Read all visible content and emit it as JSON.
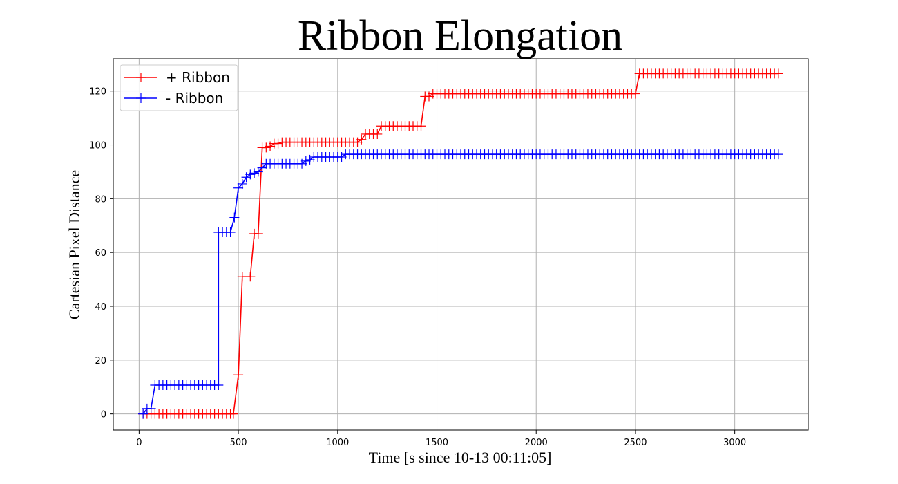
{
  "chart_data": {
    "type": "line",
    "title": "Ribbon Elongation",
    "xlabel": "Time [s since 10-13 00:11:05]",
    "ylabel": "Cartesian Pixel Distance",
    "xlim": [
      -130,
      3370
    ],
    "ylim": [
      -6,
      132
    ],
    "xticks": [
      0,
      500,
      1000,
      1500,
      2000,
      2500,
      3000
    ],
    "yticks": [
      0,
      20,
      40,
      60,
      80,
      100,
      120
    ],
    "grid": true,
    "legend_position": "top-left",
    "marker": "+",
    "series": [
      {
        "name": "+ Ribbon",
        "color": "#ff0000",
        "points": [
          [
            20,
            0
          ],
          [
            40,
            0
          ],
          [
            60,
            0
          ],
          [
            80,
            0
          ],
          [
            100,
            0
          ],
          [
            120,
            0
          ],
          [
            140,
            0
          ],
          [
            160,
            0
          ],
          [
            180,
            0
          ],
          [
            200,
            0
          ],
          [
            220,
            0
          ],
          [
            240,
            0
          ],
          [
            260,
            0
          ],
          [
            280,
            0
          ],
          [
            300,
            0
          ],
          [
            320,
            0
          ],
          [
            340,
            0
          ],
          [
            360,
            0
          ],
          [
            380,
            0
          ],
          [
            400,
            0
          ],
          [
            420,
            0
          ],
          [
            440,
            0
          ],
          [
            460,
            0
          ],
          [
            475,
            0
          ],
          [
            500,
            14.5
          ],
          [
            520,
            51
          ],
          [
            560,
            51
          ],
          [
            580,
            67
          ],
          [
            600,
            67
          ],
          [
            620,
            99
          ],
          [
            640,
            99
          ],
          [
            660,
            99.5
          ],
          [
            680,
            100.5
          ],
          [
            700,
            100.5
          ],
          [
            720,
            101
          ],
          [
            740,
            101
          ],
          [
            760,
            101
          ],
          [
            780,
            101
          ],
          [
            800,
            101
          ],
          [
            820,
            101
          ],
          [
            840,
            101
          ],
          [
            860,
            101
          ],
          [
            880,
            101
          ],
          [
            900,
            101
          ],
          [
            920,
            101
          ],
          [
            940,
            101
          ],
          [
            960,
            101
          ],
          [
            980,
            101
          ],
          [
            1000,
            101
          ],
          [
            1020,
            101
          ],
          [
            1040,
            101
          ],
          [
            1060,
            101
          ],
          [
            1080,
            101
          ],
          [
            1100,
            101
          ],
          [
            1120,
            102
          ],
          [
            1140,
            104
          ],
          [
            1160,
            104
          ],
          [
            1180,
            104
          ],
          [
            1200,
            104
          ],
          [
            1220,
            107
          ],
          [
            1240,
            107
          ],
          [
            1260,
            107
          ],
          [
            1280,
            107
          ],
          [
            1300,
            107
          ],
          [
            1320,
            107
          ],
          [
            1340,
            107
          ],
          [
            1360,
            107
          ],
          [
            1380,
            107
          ],
          [
            1400,
            107
          ],
          [
            1420,
            107
          ],
          [
            1440,
            118
          ],
          [
            1460,
            118
          ],
          [
            1480,
            119
          ],
          [
            1500,
            119
          ],
          [
            1520,
            119
          ],
          [
            1540,
            119
          ],
          [
            1560,
            119
          ],
          [
            1580,
            119
          ],
          [
            1600,
            119
          ],
          [
            1620,
            119
          ],
          [
            1640,
            119
          ],
          [
            1660,
            119
          ],
          [
            1680,
            119
          ],
          [
            1700,
            119
          ],
          [
            1720,
            119
          ],
          [
            1740,
            119
          ],
          [
            1760,
            119
          ],
          [
            1780,
            119
          ],
          [
            1800,
            119
          ],
          [
            1820,
            119
          ],
          [
            1840,
            119
          ],
          [
            1860,
            119
          ],
          [
            1880,
            119
          ],
          [
            1900,
            119
          ],
          [
            1920,
            119
          ],
          [
            1940,
            119
          ],
          [
            1960,
            119
          ],
          [
            1980,
            119
          ],
          [
            2000,
            119
          ],
          [
            2020,
            119
          ],
          [
            2040,
            119
          ],
          [
            2060,
            119
          ],
          [
            2080,
            119
          ],
          [
            2100,
            119
          ],
          [
            2120,
            119
          ],
          [
            2140,
            119
          ],
          [
            2160,
            119
          ],
          [
            2180,
            119
          ],
          [
            2200,
            119
          ],
          [
            2220,
            119
          ],
          [
            2240,
            119
          ],
          [
            2260,
            119
          ],
          [
            2280,
            119
          ],
          [
            2300,
            119
          ],
          [
            2320,
            119
          ],
          [
            2340,
            119
          ],
          [
            2360,
            119
          ],
          [
            2380,
            119
          ],
          [
            2400,
            119
          ],
          [
            2420,
            119
          ],
          [
            2440,
            119
          ],
          [
            2460,
            119
          ],
          [
            2480,
            119
          ],
          [
            2500,
            119
          ],
          [
            2520,
            126.5
          ],
          [
            2540,
            126.5
          ],
          [
            2560,
            126.5
          ],
          [
            2580,
            126.5
          ],
          [
            2600,
            126.5
          ],
          [
            2620,
            126.5
          ],
          [
            2640,
            126.5
          ],
          [
            2660,
            126.5
          ],
          [
            2680,
            126.5
          ],
          [
            2700,
            126.5
          ],
          [
            2720,
            126.5
          ],
          [
            2740,
            126.5
          ],
          [
            2760,
            126.5
          ],
          [
            2780,
            126.5
          ],
          [
            2800,
            126.5
          ],
          [
            2820,
            126.5
          ],
          [
            2840,
            126.5
          ],
          [
            2860,
            126.5
          ],
          [
            2880,
            126.5
          ],
          [
            2900,
            126.5
          ],
          [
            2920,
            126.5
          ],
          [
            2940,
            126.5
          ],
          [
            2960,
            126.5
          ],
          [
            2980,
            126.5
          ],
          [
            3000,
            126.5
          ],
          [
            3020,
            126.5
          ],
          [
            3040,
            126.5
          ],
          [
            3060,
            126.5
          ],
          [
            3080,
            126.5
          ],
          [
            3100,
            126.5
          ],
          [
            3120,
            126.5
          ],
          [
            3140,
            126.5
          ],
          [
            3160,
            126.5
          ],
          [
            3180,
            126.5
          ],
          [
            3200,
            126.5
          ],
          [
            3220,
            126.5
          ]
        ]
      },
      {
        "name": "- Ribbon",
        "color": "#0000ff",
        "points": [
          [
            20,
            0
          ],
          [
            40,
            2
          ],
          [
            60,
            2
          ],
          [
            80,
            10.7
          ],
          [
            100,
            10.7
          ],
          [
            120,
            10.7
          ],
          [
            140,
            10.7
          ],
          [
            160,
            10.7
          ],
          [
            180,
            10.7
          ],
          [
            200,
            10.7
          ],
          [
            220,
            10.7
          ],
          [
            240,
            10.7
          ],
          [
            260,
            10.7
          ],
          [
            280,
            10.7
          ],
          [
            300,
            10.7
          ],
          [
            320,
            10.7
          ],
          [
            340,
            10.7
          ],
          [
            360,
            10.7
          ],
          [
            380,
            10.7
          ],
          [
            400,
            10.7
          ],
          [
            400,
            67.5
          ],
          [
            420,
            67.5
          ],
          [
            440,
            67.5
          ],
          [
            460,
            67.5
          ],
          [
            480,
            73
          ],
          [
            500,
            84
          ],
          [
            520,
            85.5
          ],
          [
            540,
            88
          ],
          [
            560,
            89
          ],
          [
            580,
            89.5
          ],
          [
            600,
            90
          ],
          [
            620,
            91.5
          ],
          [
            640,
            93
          ],
          [
            660,
            93
          ],
          [
            680,
            93
          ],
          [
            700,
            93
          ],
          [
            720,
            93
          ],
          [
            740,
            93
          ],
          [
            760,
            93
          ],
          [
            780,
            93
          ],
          [
            800,
            93
          ],
          [
            820,
            93
          ],
          [
            840,
            94
          ],
          [
            860,
            94.5
          ],
          [
            880,
            95.5
          ],
          [
            900,
            95.5
          ],
          [
            920,
            95.5
          ],
          [
            940,
            95.5
          ],
          [
            960,
            95.5
          ],
          [
            980,
            95.5
          ],
          [
            1000,
            95.5
          ],
          [
            1020,
            95.5
          ],
          [
            1040,
            96.5
          ],
          [
            1060,
            96.5
          ],
          [
            1080,
            96.5
          ],
          [
            1100,
            96.5
          ],
          [
            1120,
            96.5
          ],
          [
            1140,
            96.5
          ],
          [
            1160,
            96.5
          ],
          [
            1180,
            96.5
          ],
          [
            1200,
            96.5
          ],
          [
            1220,
            96.5
          ],
          [
            1240,
            96.5
          ],
          [
            1260,
            96.5
          ],
          [
            1280,
            96.5
          ],
          [
            1300,
            96.5
          ],
          [
            1320,
            96.5
          ],
          [
            1340,
            96.5
          ],
          [
            1360,
            96.5
          ],
          [
            1380,
            96.5
          ],
          [
            1400,
            96.5
          ],
          [
            1420,
            96.5
          ],
          [
            1440,
            96.5
          ],
          [
            1460,
            96.5
          ],
          [
            1480,
            96.5
          ],
          [
            1500,
            96.5
          ],
          [
            1520,
            96.5
          ],
          [
            1540,
            96.5
          ],
          [
            1560,
            96.5
          ],
          [
            1580,
            96.5
          ],
          [
            1600,
            96.5
          ],
          [
            1620,
            96.5
          ],
          [
            1640,
            96.5
          ],
          [
            1660,
            96.5
          ],
          [
            1680,
            96.5
          ],
          [
            1700,
            96.5
          ],
          [
            1720,
            96.5
          ],
          [
            1740,
            96.5
          ],
          [
            1760,
            96.5
          ],
          [
            1780,
            96.5
          ],
          [
            1800,
            96.5
          ],
          [
            1820,
            96.5
          ],
          [
            1840,
            96.5
          ],
          [
            1860,
            96.5
          ],
          [
            1880,
            96.5
          ],
          [
            1900,
            96.5
          ],
          [
            1920,
            96.5
          ],
          [
            1940,
            96.5
          ],
          [
            1960,
            96.5
          ],
          [
            1980,
            96.5
          ],
          [
            2000,
            96.5
          ],
          [
            2020,
            96.5
          ],
          [
            2040,
            96.5
          ],
          [
            2060,
            96.5
          ],
          [
            2080,
            96.5
          ],
          [
            2100,
            96.5
          ],
          [
            2120,
            96.5
          ],
          [
            2140,
            96.5
          ],
          [
            2160,
            96.5
          ],
          [
            2180,
            96.5
          ],
          [
            2200,
            96.5
          ],
          [
            2220,
            96.5
          ],
          [
            2240,
            96.5
          ],
          [
            2260,
            96.5
          ],
          [
            2280,
            96.5
          ],
          [
            2300,
            96.5
          ],
          [
            2320,
            96.5
          ],
          [
            2340,
            96.5
          ],
          [
            2360,
            96.5
          ],
          [
            2380,
            96.5
          ],
          [
            2400,
            96.5
          ],
          [
            2420,
            96.5
          ],
          [
            2440,
            96.5
          ],
          [
            2460,
            96.5
          ],
          [
            2480,
            96.5
          ],
          [
            2500,
            96.5
          ],
          [
            2520,
            96.5
          ],
          [
            2540,
            96.5
          ],
          [
            2560,
            96.5
          ],
          [
            2580,
            96.5
          ],
          [
            2600,
            96.5
          ],
          [
            2620,
            96.5
          ],
          [
            2640,
            96.5
          ],
          [
            2660,
            96.5
          ],
          [
            2680,
            96.5
          ],
          [
            2700,
            96.5
          ],
          [
            2720,
            96.5
          ],
          [
            2740,
            96.5
          ],
          [
            2760,
            96.5
          ],
          [
            2780,
            96.5
          ],
          [
            2800,
            96.5
          ],
          [
            2820,
            96.5
          ],
          [
            2840,
            96.5
          ],
          [
            2860,
            96.5
          ],
          [
            2880,
            96.5
          ],
          [
            2900,
            96.5
          ],
          [
            2920,
            96.5
          ],
          [
            2940,
            96.5
          ],
          [
            2960,
            96.5
          ],
          [
            2980,
            96.5
          ],
          [
            3000,
            96.5
          ],
          [
            3020,
            96.5
          ],
          [
            3040,
            96.5
          ],
          [
            3060,
            96.5
          ],
          [
            3080,
            96.5
          ],
          [
            3100,
            96.5
          ],
          [
            3120,
            96.5
          ],
          [
            3140,
            96.5
          ],
          [
            3160,
            96.5
          ],
          [
            3180,
            96.5
          ],
          [
            3200,
            96.5
          ],
          [
            3220,
            96.5
          ]
        ]
      }
    ]
  }
}
